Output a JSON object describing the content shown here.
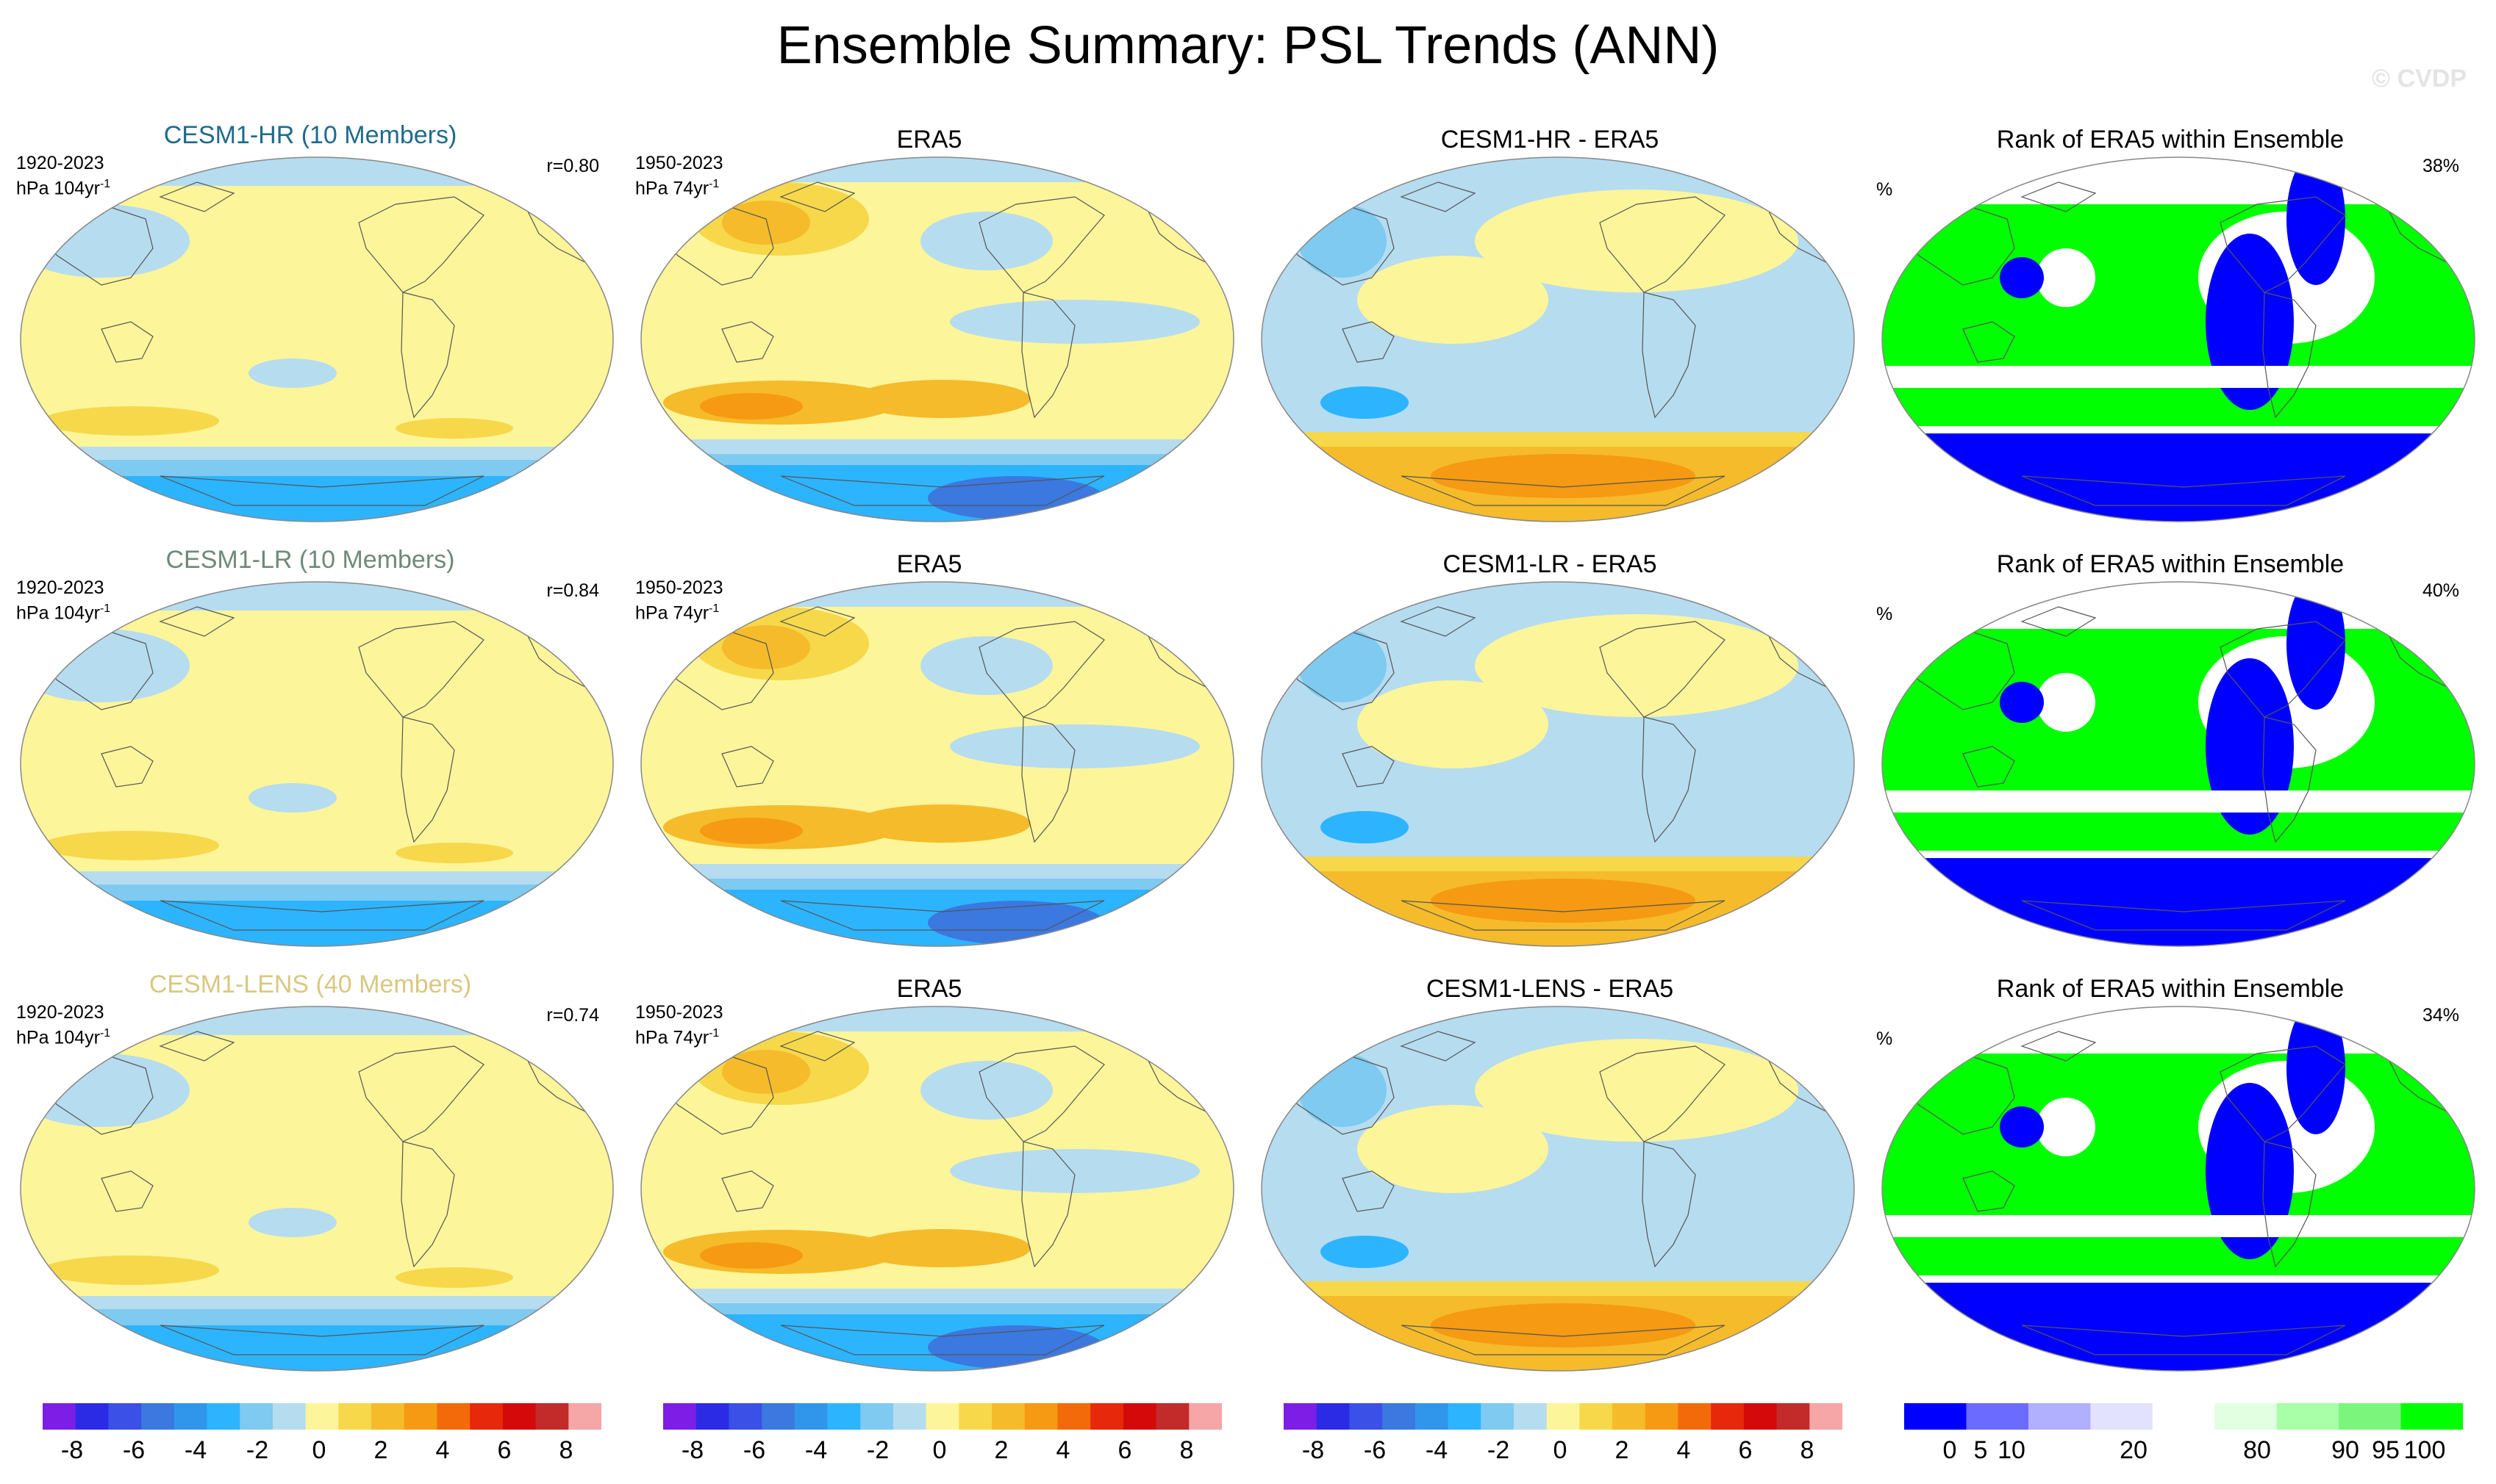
{
  "title": "Ensemble Summary: PSL Trends (ANN)",
  "watermark": "© CVDP",
  "colors": {
    "model_title": "#1e6b8c",
    "lr_title": "#6e8a78",
    "lens_title": "#d8c880",
    "cold": [
      "#7c1ee6",
      "#2b2be6",
      "#3a50e6",
      "#3b78e0",
      "#2f96ec",
      "#2db4ff",
      "#7ecaf0",
      "#b6dcf0"
    ],
    "warm": [
      "#fdf59a",
      "#f6d84a",
      "#f5bb2a",
      "#f59a12",
      "#f36a0a",
      "#e7280a",
      "#d40a0a",
      "#c32a2a",
      "#f6a6a6"
    ],
    "rank": [
      "#0000ff",
      "#6b6bff",
      "#b0b0ff",
      "#e2e2ff",
      "#ffffff",
      "#e2ffe2",
      "#a8ffa8",
      "#7cf57c",
      "#00ff00"
    ]
  },
  "rows": [
    {
      "model": {
        "title": "CESM1-HR (10 Members)",
        "period": "1920-2023",
        "units": "hPa 104yr",
        "units_sup": "-1",
        "corr": "r=0.80"
      },
      "obs": {
        "title": "ERA5",
        "period": "1950-2023",
        "units": "hPa 74yr",
        "units_sup": "-1"
      },
      "diff": {
        "title": "CESM1-HR - ERA5"
      },
      "rank": {
        "title": "Rank of ERA5 within Ensemble",
        "units": "%",
        "pct": "38%"
      }
    },
    {
      "model": {
        "title": "CESM1-LR (10 Members)",
        "period": "1920-2023",
        "units": "hPa 104yr",
        "units_sup": "-1",
        "corr": "r=0.84"
      },
      "obs": {
        "title": "ERA5",
        "period": "1950-2023",
        "units": "hPa 74yr",
        "units_sup": "-1"
      },
      "diff": {
        "title": "CESM1-LR - ERA5"
      },
      "rank": {
        "title": "Rank of ERA5 within Ensemble",
        "units": "%",
        "pct": "40%"
      }
    },
    {
      "model": {
        "title": "CESM1-LENS (40 Members)",
        "period": "1920-2023",
        "units": "hPa 104yr",
        "units_sup": "-1",
        "corr": "r=0.74"
      },
      "obs": {
        "title": "ERA5",
        "period": "1950-2023",
        "units": "hPa 74yr",
        "units_sup": "-1"
      },
      "diff": {
        "title": "CESM1-LENS - ERA5"
      },
      "rank": {
        "title": "Rank of ERA5 within Ensemble",
        "units": "%",
        "pct": "34%"
      }
    }
  ],
  "colorbars": {
    "trend_labels": [
      "-8",
      "-6",
      "-4",
      "-2",
      "0",
      "2",
      "4",
      "6",
      "8"
    ],
    "rank_labels": [
      "0",
      "5",
      "10",
      "20",
      "80",
      "90",
      "95",
      "100"
    ]
  }
}
